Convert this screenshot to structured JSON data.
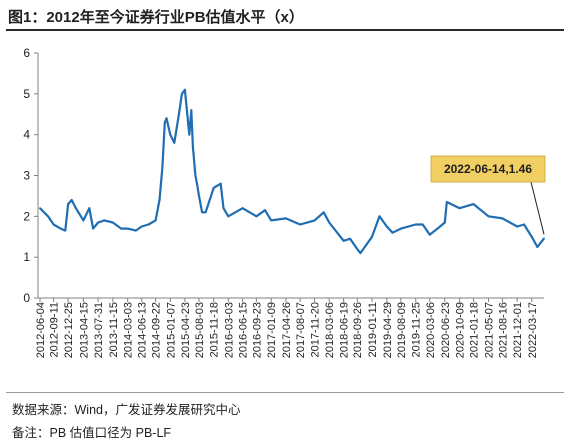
{
  "header": {
    "title": "图1：2012年至今证券行业PB估值水平（x）"
  },
  "footer": {
    "source": "数据来源：Wind，广发证券发展研究中心",
    "note": "备注：PB 估值口径为 PB-LF"
  },
  "colors": {
    "line": "#1f6db2",
    "callout_fill": "#f1cf63",
    "axis": "#808080"
  },
  "chart_data": {
    "type": "line",
    "title": "图1：2012年至今证券行业PB估值水平（x）",
    "xlabel": "",
    "ylabel": "",
    "ylim": [
      0,
      6
    ],
    "yticks": [
      0,
      1,
      2,
      3,
      4,
      5,
      6
    ],
    "x_tick_labels": [
      "2012-06-04",
      "2012-09-11",
      "2012-12-25",
      "2013-04-15",
      "2013-07-31",
      "2013-11-15",
      "2014-03-03",
      "2014-06-13",
      "2014-09-22",
      "2015-01-07",
      "2015-04-23",
      "2015-08-03",
      "2015-11-18",
      "2016-03-03",
      "2016-06-15",
      "2016-09-23",
      "2017-01-09",
      "2017-04-26",
      "2017-08-07",
      "2017-11-20",
      "2018-03-06",
      "2018-06-19",
      "2018-09-26",
      "2019-01-11",
      "2019-04-29",
      "2019-08-09",
      "2019-11-25",
      "2020-03-06",
      "2020-06-23",
      "2020-10-09",
      "2021-01-18",
      "2021-05-07",
      "2021-08-16",
      "2021-12-01",
      "2022-03-17"
    ],
    "grid": false,
    "legend": "none",
    "annotation": {
      "label": "2022-06-14,1.46",
      "x": "2022-06-14",
      "y": 1.46
    },
    "series": [
      {
        "x": [
          "2012-06-04",
          "2012-08-01",
          "2012-09-11",
          "2012-11-01",
          "2012-12-05",
          "2012-12-25",
          "2013-01-20",
          "2013-02-20",
          "2013-04-15",
          "2013-05-28",
          "2013-06-25",
          "2013-07-31",
          "2013-09-15",
          "2013-11-15",
          "2014-01-15",
          "2014-03-03",
          "2014-05-01",
          "2014-06-13",
          "2014-08-01",
          "2014-09-22",
          "2014-10-20",
          "2014-11-10",
          "2014-11-28",
          "2014-12-10",
          "2015-01-07",
          "2015-02-05",
          "2015-03-10",
          "2015-04-01",
          "2015-04-23",
          "2015-05-25",
          "2015-06-08",
          "2015-06-20",
          "2015-07-08",
          "2015-07-20",
          "2015-08-03",
          "2015-08-26",
          "2015-09-20",
          "2015-10-20",
          "2015-11-18",
          "2016-01-08",
          "2016-01-28",
          "2016-03-03",
          "2016-06-15",
          "2016-09-23",
          "2016-11-25",
          "2017-01-09",
          "2017-04-26",
          "2017-08-07",
          "2017-11-20",
          "2018-01-25",
          "2018-03-06",
          "2018-06-19",
          "2018-08-05",
          "2018-09-26",
          "2018-10-19",
          "2019-01-11",
          "2019-03-07",
          "2019-04-29",
          "2019-06-10",
          "2019-08-09",
          "2019-11-25",
          "2020-01-15",
          "2020-03-06",
          "2020-05-20",
          "2020-06-23",
          "2020-07-08",
          "2020-10-09",
          "2021-01-18",
          "2021-05-07",
          "2021-08-16",
          "2021-12-01",
          "2022-01-20",
          "2022-03-17",
          "2022-04-27",
          "2022-06-14"
        ],
        "values": [
          2.2,
          2.0,
          1.8,
          1.7,
          1.65,
          2.3,
          2.4,
          2.2,
          1.9,
          2.2,
          1.7,
          1.85,
          1.9,
          1.85,
          1.7,
          1.7,
          1.65,
          1.75,
          1.8,
          1.9,
          2.4,
          3.2,
          4.3,
          4.4,
          4.0,
          3.8,
          4.5,
          5.0,
          5.1,
          4.0,
          4.6,
          3.7,
          3.0,
          2.8,
          2.5,
          2.1,
          2.1,
          2.4,
          2.7,
          2.8,
          2.2,
          2.0,
          2.2,
          2.0,
          2.15,
          1.9,
          1.95,
          1.8,
          1.9,
          2.1,
          1.85,
          1.4,
          1.45,
          1.2,
          1.1,
          1.5,
          2.0,
          1.75,
          1.6,
          1.7,
          1.8,
          1.8,
          1.55,
          1.75,
          1.85,
          2.35,
          2.2,
          2.3,
          2.0,
          1.95,
          1.75,
          1.8,
          1.5,
          1.25,
          1.46
        ]
      }
    ]
  }
}
